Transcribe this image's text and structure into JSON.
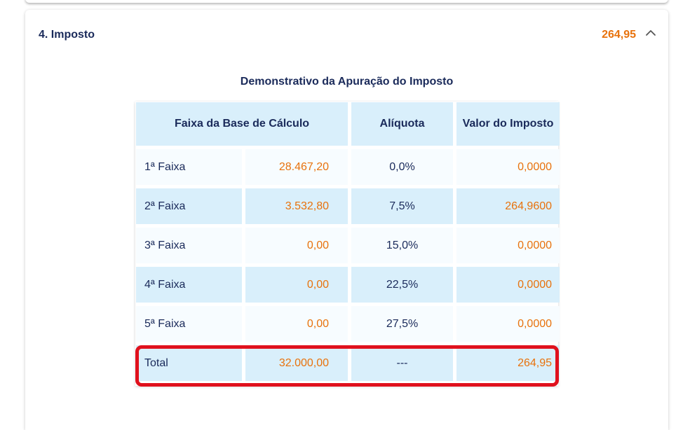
{
  "section": {
    "title": "4. Imposto",
    "total_value": "264,95",
    "collapse_icon": "chevron-up-icon"
  },
  "table": {
    "title": "Demonstrativo da Apuração do Imposto",
    "headers": {
      "faixa": "Faixa da Base de Cálculo",
      "aliquota": "Alíquota",
      "valor": "Valor do Imposto"
    },
    "rows": [
      {
        "faixa": "1ª Faixa",
        "base": "28.467,20",
        "aliquota": "0,0%",
        "valor": "0,0000"
      },
      {
        "faixa": "2ª Faixa",
        "base": "3.532,80",
        "aliquota": "7,5%",
        "valor": "264,9600"
      },
      {
        "faixa": "3ª Faixa",
        "base": "0,00",
        "aliquota": "15,0%",
        "valor": "0,0000"
      },
      {
        "faixa": "4ª Faixa",
        "base": "0,00",
        "aliquota": "22,5%",
        "valor": "0,0000"
      },
      {
        "faixa": "5ª Faixa",
        "base": "0,00",
        "aliquota": "27,5%",
        "valor": "0,0000"
      }
    ],
    "total": {
      "label": "Total",
      "base": "32.000,00",
      "aliquota": "---",
      "valor": "264,95"
    }
  },
  "colors": {
    "accent_orange": "#e8720c",
    "text_navy": "#1a2a5a",
    "row_blue": "#d9effb",
    "highlight_red": "#e0111d"
  }
}
